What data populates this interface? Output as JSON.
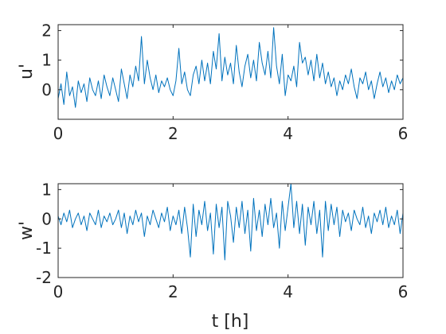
{
  "chart_data": [
    {
      "type": "line",
      "xlabel": "",
      "ylabel": "u'",
      "xlim": [
        0,
        6
      ],
      "ylim": [
        -1,
        2.2
      ],
      "xticks": [
        0,
        2,
        4,
        6
      ],
      "xtick_labels": [
        "0",
        "2",
        "4",
        "6"
      ],
      "yticks": [
        0,
        1,
        2
      ],
      "ytick_labels": [
        "0",
        "1",
        "2"
      ],
      "grid": false,
      "color": "#0072BD",
      "series": [
        {
          "x": [
            0,
            0.05,
            0.1,
            0.15,
            0.2,
            0.25,
            0.3,
            0.35,
            0.4,
            0.45,
            0.5,
            0.55,
            0.6,
            0.65,
            0.7,
            0.75,
            0.8,
            0.85,
            0.9,
            0.95,
            1.0,
            1.05,
            1.1,
            1.15,
            1.2,
            1.25,
            1.3,
            1.35,
            1.4,
            1.45,
            1.5,
            1.55,
            1.6,
            1.65,
            1.7,
            1.75,
            1.8,
            1.85,
            1.9,
            1.95,
            2.0,
            2.05,
            2.1,
            2.15,
            2.2,
            2.25,
            2.3,
            2.35,
            2.4,
            2.45,
            2.5,
            2.55,
            2.6,
            2.65,
            2.7,
            2.75,
            2.8,
            2.85,
            2.9,
            2.95,
            3.0,
            3.05,
            3.1,
            3.15,
            3.2,
            3.25,
            3.3,
            3.35,
            3.4,
            3.45,
            3.5,
            3.55,
            3.6,
            3.65,
            3.7,
            3.75,
            3.8,
            3.85,
            3.9,
            3.95,
            4.0,
            4.05,
            4.1,
            4.15,
            4.2,
            4.25,
            4.3,
            4.35,
            4.4,
            4.45,
            4.5,
            4.55,
            4.6,
            4.65,
            4.7,
            4.75,
            4.8,
            4.85,
            4.9,
            4.95,
            5.0,
            5.05,
            5.1,
            5.15,
            5.2,
            5.25,
            5.3,
            5.35,
            5.4,
            5.45,
            5.5,
            5.55,
            5.6,
            5.65,
            5.7,
            5.75,
            5.8,
            5.85,
            5.9,
            5.95,
            6.0
          ],
          "y": [
            -0.3,
            0.2,
            -0.5,
            0.6,
            -0.2,
            0.1,
            -0.6,
            0.3,
            -0.1,
            0.2,
            -0.4,
            0.4,
            0.0,
            -0.2,
            0.3,
            -0.3,
            0.5,
            0.1,
            -0.2,
            0.4,
            0.0,
            -0.4,
            0.7,
            0.2,
            -0.3,
            0.5,
            0.1,
            0.8,
            0.3,
            1.8,
            0.2,
            1.0,
            0.4,
            0.0,
            0.5,
            -0.1,
            0.3,
            0.1,
            0.4,
            0.0,
            -0.2,
            0.3,
            1.4,
            0.2,
            0.6,
            0.0,
            -0.2,
            0.5,
            0.8,
            0.2,
            1.0,
            0.3,
            0.9,
            0.2,
            1.3,
            0.7,
            1.9,
            0.3,
            1.1,
            0.5,
            0.9,
            0.2,
            1.5,
            0.6,
            0.1,
            0.8,
            1.2,
            0.4,
            1.0,
            0.3,
            1.6,
            0.9,
            0.5,
            1.3,
            0.4,
            2.1,
            0.8,
            0.2,
            1.2,
            -0.2,
            0.5,
            0.3,
            0.8,
            0.1,
            1.6,
            0.9,
            1.1,
            0.5,
            1.0,
            0.3,
            1.2,
            0.4,
            0.9,
            0.2,
            0.6,
            0.1,
            0.4,
            -0.2,
            0.3,
            0.0,
            0.5,
            0.2,
            0.7,
            0.1,
            -0.3,
            0.4,
            0.2,
            0.6,
            0.0,
            0.3,
            -0.3,
            0.2,
            0.6,
            0.1,
            0.4,
            -0.1,
            0.3,
            0.0,
            0.5,
            0.2,
            0.4
          ]
        }
      ]
    },
    {
      "type": "line",
      "xlabel": "t [h]",
      "ylabel": "w'",
      "xlim": [
        0,
        6
      ],
      "ylim": [
        -2,
        1.2
      ],
      "xticks": [
        0,
        2,
        4,
        6
      ],
      "xtick_labels": [
        "0",
        "2",
        "4",
        "6"
      ],
      "yticks": [
        -2,
        -1,
        0,
        1
      ],
      "ytick_labels": [
        "-2",
        "-1",
        "0",
        "1"
      ],
      "grid": false,
      "color": "#0072BD",
      "series": [
        {
          "x": [
            0,
            0.05,
            0.1,
            0.15,
            0.2,
            0.25,
            0.3,
            0.35,
            0.4,
            0.45,
            0.5,
            0.55,
            0.6,
            0.65,
            0.7,
            0.75,
            0.8,
            0.85,
            0.9,
            0.95,
            1.0,
            1.05,
            1.1,
            1.15,
            1.2,
            1.25,
            1.3,
            1.35,
            1.4,
            1.45,
            1.5,
            1.55,
            1.6,
            1.65,
            1.7,
            1.75,
            1.8,
            1.85,
            1.9,
            1.95,
            2.0,
            2.05,
            2.1,
            2.15,
            2.2,
            2.25,
            2.3,
            2.35,
            2.4,
            2.45,
            2.5,
            2.55,
            2.6,
            2.65,
            2.7,
            2.75,
            2.8,
            2.85,
            2.9,
            2.95,
            3.0,
            3.05,
            3.1,
            3.15,
            3.2,
            3.25,
            3.3,
            3.35,
            3.4,
            3.45,
            3.5,
            3.55,
            3.6,
            3.65,
            3.7,
            3.75,
            3.8,
            3.85,
            3.9,
            3.95,
            4.0,
            4.05,
            4.1,
            4.15,
            4.2,
            4.25,
            4.3,
            4.35,
            4.4,
            4.45,
            4.5,
            4.55,
            4.6,
            4.65,
            4.7,
            4.75,
            4.8,
            4.85,
            4.9,
            4.95,
            5.0,
            5.05,
            5.1,
            5.15,
            5.2,
            5.25,
            5.3,
            5.35,
            5.4,
            5.45,
            5.5,
            5.55,
            5.6,
            5.65,
            5.7,
            5.75,
            5.8,
            5.85,
            5.9,
            5.95,
            6.0
          ],
          "y": [
            0.1,
            -0.2,
            0.2,
            -0.1,
            0.3,
            -0.3,
            0.0,
            0.2,
            -0.2,
            0.1,
            -0.4,
            0.2,
            0.0,
            -0.2,
            0.3,
            -0.3,
            0.1,
            -0.1,
            0.2,
            -0.2,
            0.0,
            0.3,
            -0.3,
            0.2,
            -0.5,
            0.1,
            -0.2,
            0.3,
            -0.1,
            0.2,
            -0.6,
            0.1,
            -0.2,
            0.3,
            0.0,
            -0.3,
            0.2,
            -0.1,
            0.4,
            -0.4,
            0.1,
            -0.2,
            0.3,
            -0.5,
            0.4,
            -0.3,
            -1.3,
            0.5,
            -0.6,
            0.3,
            -0.2,
            0.6,
            -0.4,
            0.2,
            -1.2,
            0.5,
            -0.3,
            0.4,
            -1.4,
            0.6,
            0.1,
            -0.8,
            0.4,
            -0.3,
            0.6,
            -0.5,
            0.3,
            -1.1,
            0.7,
            -0.4,
            0.3,
            -0.6,
            0.5,
            -0.2,
            0.7,
            -0.3,
            0.2,
            -1.0,
            0.6,
            -0.4,
            0.4,
            1.2,
            -0.3,
            0.6,
            -0.5,
            0.5,
            -0.9,
            0.4,
            -0.2,
            0.6,
            -0.5,
            0.3,
            -1.3,
            0.6,
            -0.4,
            0.5,
            -0.2,
            0.4,
            -0.6,
            0.3,
            -0.1,
            0.2,
            -0.4,
            0.3,
            0.0,
            -0.2,
            0.4,
            -0.3,
            0.1,
            -0.5,
            0.2,
            -0.1,
            0.3,
            -0.2,
            0.4,
            -0.3,
            0.1,
            -0.2,
            0.3,
            -0.5,
            0.2
          ]
        }
      ]
    }
  ]
}
